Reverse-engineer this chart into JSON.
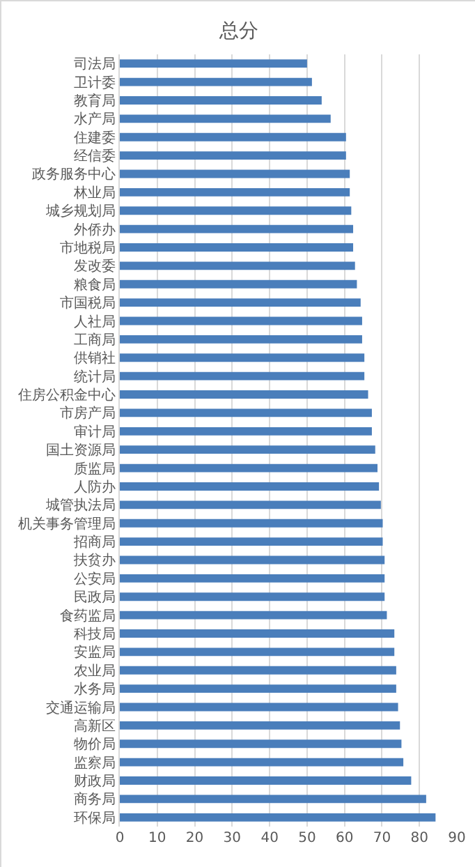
{
  "chart_data": {
    "type": "bar",
    "orientation": "horizontal",
    "title": "总分",
    "categories": [
      "司法局",
      "卫计委",
      "教育局",
      "水产局",
      "住建委",
      "经信委",
      "政务服务中心",
      "林业局",
      "城乡规划局",
      "外侨办",
      "市地税局",
      "发改委",
      "粮食局",
      "市国税局",
      "人社局",
      "工商局",
      "供销社",
      "统计局",
      "住房公积金中心",
      "市房产局",
      "审计局",
      "国土资源局",
      "质监局",
      "人防办",
      "城管执法局",
      "机关事务管理局",
      "招商局",
      "扶贫办",
      "公安局",
      "民政局",
      "食药监局",
      "科技局",
      "安监局",
      "农业局",
      "水务局",
      "交通运输局",
      "高新区",
      "物价局",
      "监察局",
      "财政局",
      "商务局",
      "环保局"
    ],
    "values": [
      50,
      51.3,
      53.9,
      56.3,
      60.4,
      60.4,
      61.4,
      61.4,
      61.8,
      62.3,
      62.3,
      62.8,
      63.3,
      64.3,
      64.7,
      64.7,
      65.3,
      65.3,
      66.3,
      67.3,
      67.3,
      68.2,
      68.8,
      69.2,
      69.7,
      70.2,
      70.2,
      70.7,
      70.7,
      70.7,
      71.3,
      73.3,
      73.3,
      73.8,
      73.8,
      74.3,
      74.8,
      75.2,
      75.7,
      77.8,
      81.8,
      84.3
    ],
    "color": "#4a7ebb",
    "xlim": [
      0,
      90
    ],
    "xticks": [
      0,
      10,
      20,
      30,
      40,
      50,
      60,
      70,
      80,
      90
    ],
    "grid": "x"
  }
}
